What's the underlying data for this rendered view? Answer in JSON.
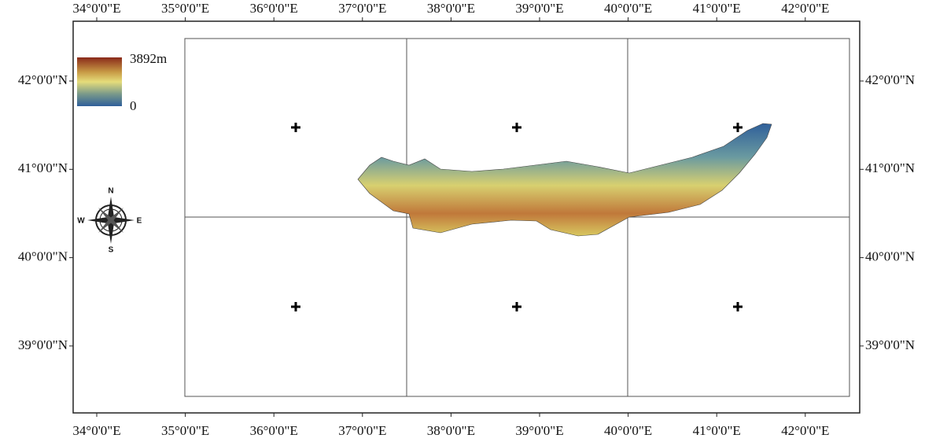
{
  "map": {
    "longitude_labels": [
      "34°0'0\"E",
      "35°0'0\"E",
      "36°0'0\"E",
      "37°0'0\"E",
      "38°0'0\"E",
      "39°0'0\"E",
      "40°0'0\"E",
      "41°0'0\"E",
      "42°0'0\"E"
    ],
    "latitude_labels": [
      "42°0'0\"N",
      "41°0'0\"N",
      "40°0'0\"N",
      "39°0'0\"N"
    ],
    "legend": {
      "max_label": "3892m",
      "min_label": "0"
    },
    "compass": {
      "north": "N",
      "south": "S",
      "east": "E",
      "west": "W"
    }
  }
}
